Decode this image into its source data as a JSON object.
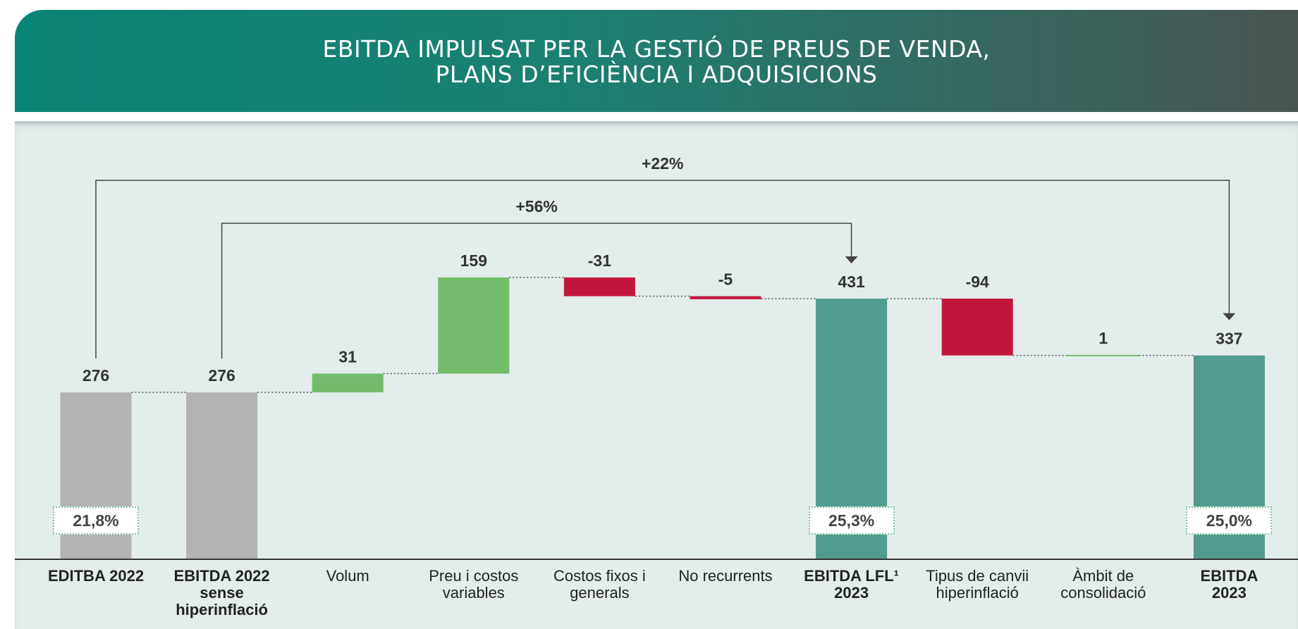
{
  "chart_data": {
    "type": "waterfall",
    "title": "EBITDA IMPULSAT PER LA GESTIÓ DE PREUS DE VENDA,\nPLANS D’EFICIÈNCIA I ADQUISICIONS",
    "categories": [
      "EDITBA 2022",
      "EBITDA 2022\nsense hiperinflació",
      "Volum",
      "Preu i costos\nvariables",
      "Costos fixos i\ngenerals",
      "No recurrents",
      "EBITDA LFL¹\n2023",
      "Tipus de canvii\nhiperinflació",
      "Àmbit de\nconsolidació",
      "EBITDA\n2023"
    ],
    "values": [
      276,
      276,
      31,
      159,
      -31,
      -5,
      431,
      -94,
      1,
      337
    ],
    "is_total": [
      true,
      true,
      false,
      false,
      false,
      false,
      true,
      false,
      false,
      true
    ],
    "colors": [
      "#b3b3b3",
      "#b3b3b3",
      "#72bc6b",
      "#72bc6b",
      "#c4153f",
      "#c4153f",
      "#519b8f",
      "#c4153f",
      "#72bc6b",
      "#519b8f"
    ],
    "margins": [
      "21,8%",
      null,
      null,
      null,
      null,
      null,
      "25,3%",
      null,
      null,
      "25,0%"
    ],
    "bridges": [
      {
        "from": "EDITBA 2022",
        "to": "EBITDA\n2023",
        "label": "+22%"
      },
      {
        "from": "EBITDA 2022\nsense hiperinflació",
        "to": "EBITDA LFL¹\n2023",
        "label": "+56%"
      }
    ],
    "ylim": [
      0,
      700
    ]
  }
}
